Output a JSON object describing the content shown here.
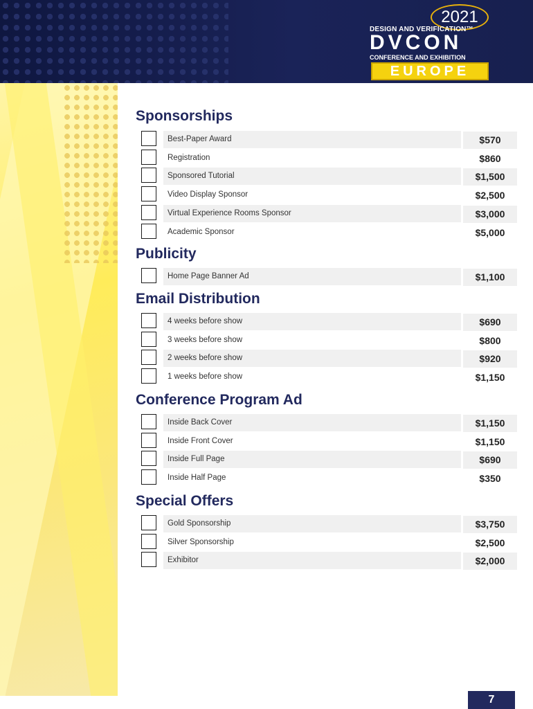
{
  "header": {
    "logo": {
      "year": "2021",
      "line1": "DESIGN AND VERIFICATION™",
      "name": "DVCON",
      "line2": "CONFERENCE AND EXHIBITION",
      "region": "EUROPE",
      "accent_color": "#f5d20f"
    }
  },
  "sections": [
    {
      "title": "Sponsorships",
      "items": [
        {
          "label": "Best-Paper Award",
          "price": "$570"
        },
        {
          "label": "Registration",
          "price": "$860"
        },
        {
          "label": "Sponsored Tutorial",
          "price": "$1,500"
        },
        {
          "label": "Video Display Sponsor",
          "price": "$2,500"
        },
        {
          "label": "Virtual Experience Rooms Sponsor",
          "price": "$3,000"
        },
        {
          "label": "Academic Sponsor",
          "price": "$5,000"
        }
      ]
    },
    {
      "title": "Publicity",
      "items": [
        {
          "label": "Home Page Banner Ad",
          "price": "$1,100"
        }
      ]
    },
    {
      "title": "Email Distribution",
      "items": [
        {
          "label": "4 weeks before show",
          "price": "$690"
        },
        {
          "label": "3 weeks before show",
          "price": "$800"
        },
        {
          "label": "2 weeks before show",
          "price": "$920"
        },
        {
          "label": "1 weeks before show",
          "price": "$1,150"
        }
      ]
    },
    {
      "title": "Conference Program Ad",
      "items": [
        {
          "label": "Inside Back Cover",
          "price": "$1,150"
        },
        {
          "label": "Inside Front Cover",
          "price": "$1,150"
        },
        {
          "label": "Inside Full Page",
          "price": "$690"
        },
        {
          "label": "Inside Half Page",
          "price": "$350"
        }
      ]
    },
    {
      "title": "Special Offers",
      "items": [
        {
          "label": "Gold Sponsorship",
          "price": "$3,750"
        },
        {
          "label": "Silver Sponsorship",
          "price": "$2,500"
        },
        {
          "label": "Exhibitor",
          "price": "$2,000"
        }
      ]
    }
  ],
  "page_number": "7",
  "colors": {
    "navy": "#22295e",
    "header_bg": "#1a2358",
    "row_bg": "#f0f0f0"
  }
}
